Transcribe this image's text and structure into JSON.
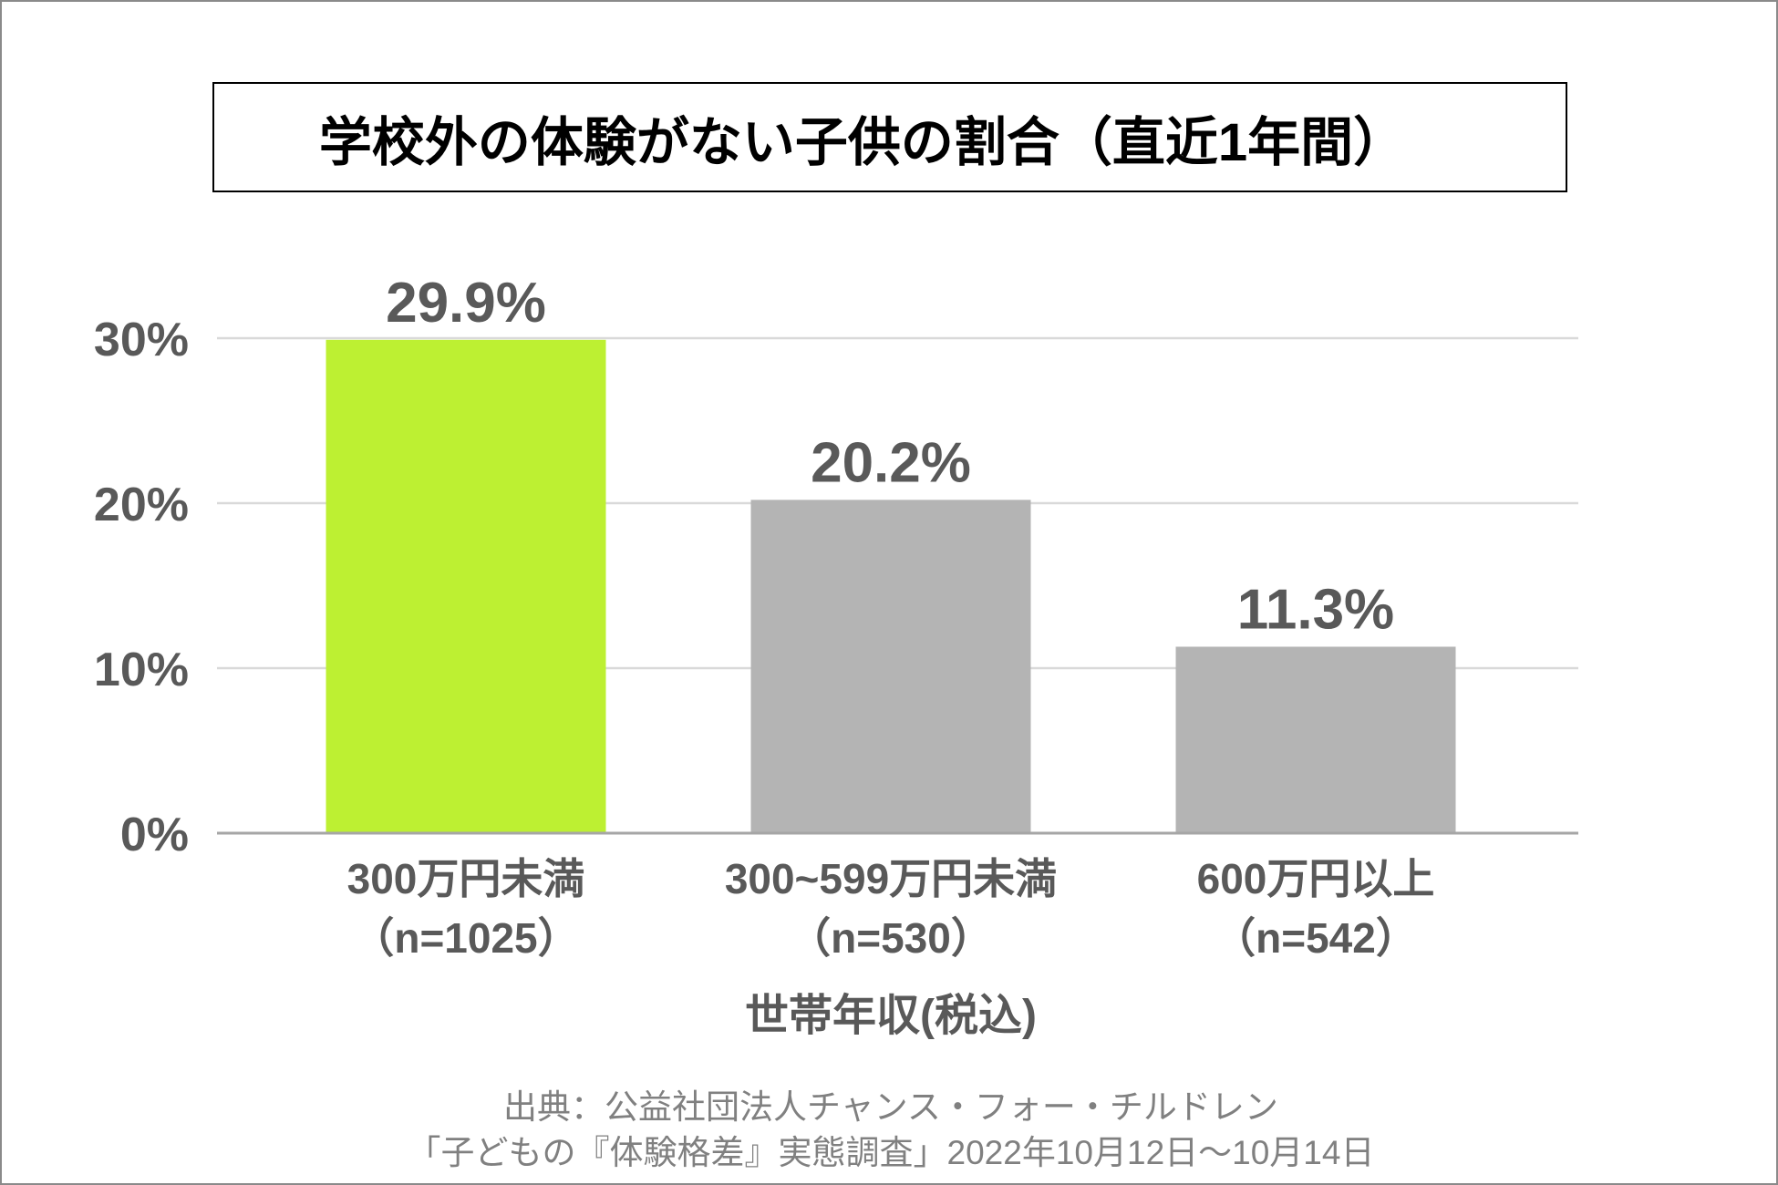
{
  "chart_data": {
    "type": "bar",
    "title": "学校外の体験がない子供の割合（直近1年間）",
    "categories": [
      "300万円未満",
      "300~599万円未満",
      "600万円以上"
    ],
    "sample_sizes": [
      "（n=1025）",
      "（n=530）",
      "（n=542）"
    ],
    "values": [
      29.9,
      20.2,
      11.3
    ],
    "data_labels": [
      "29.9%",
      "20.2%",
      "11.3%"
    ],
    "xlabel": "世帯年収(税込)",
    "ylim": [
      0,
      30
    ],
    "yticks": [
      0,
      10,
      20,
      30
    ],
    "ytick_labels": [
      "0%",
      "10%",
      "20%",
      "30%"
    ],
    "grid": true,
    "bar_colors": [
      "#bdf032",
      "#b4b4b4",
      "#b4b4b4"
    ],
    "grid_color": "#d9d9d9",
    "axis_color": "#a6a6a6"
  },
  "source": {
    "line1": "出典：公益社団法人チャンス・フォー・チルドレン",
    "line2": "「子どもの『体験格差』実態調査」2022年10月12日～10月14日"
  }
}
